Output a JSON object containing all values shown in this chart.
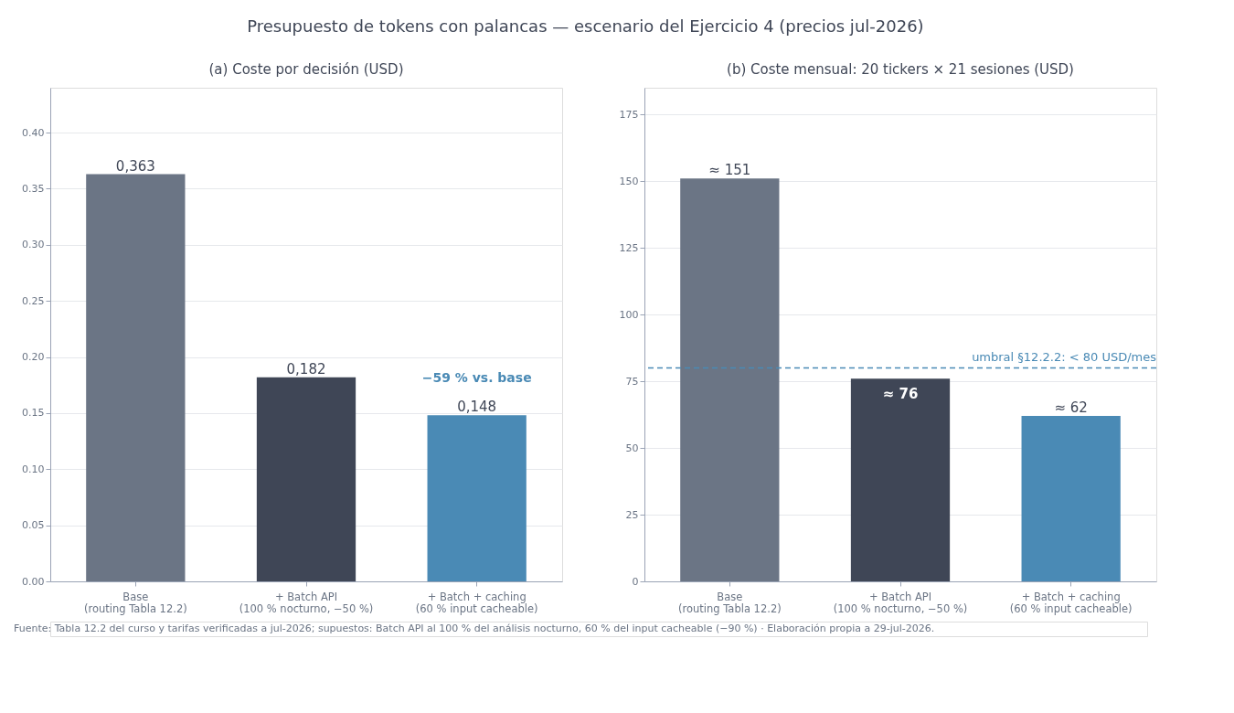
{
  "chart_data": [
    {
      "type": "bar",
      "title": "(a) Coste por decisión (USD)",
      "categories": [
        "Base\n(routing Tabla 12.2)",
        "+ Batch API\n(100 % nocturno, −50 %)",
        "+ Batch + caching\n(60 % input cacheable)"
      ],
      "values": [
        0.363,
        0.182,
        0.148
      ],
      "colors": [
        "#6b7585",
        "#3f4656",
        "#4a8ab5"
      ],
      "value_labels": [
        "0,363",
        "0,182",
        "0,148"
      ],
      "ylim": [
        0,
        0.44
      ],
      "yticks": [
        {
          "value": 0,
          "label": "0.00"
        },
        {
          "value": 0.05,
          "label": "0.05"
        },
        {
          "value": 0.1,
          "label": "0.10"
        },
        {
          "value": 0.15,
          "label": "0.15"
        },
        {
          "value": 0.2,
          "label": "0.20"
        },
        {
          "value": 0.25,
          "label": "0.25"
        },
        {
          "value": 0.3,
          "label": "0.30"
        },
        {
          "value": 0.35,
          "label": "0.35"
        },
        {
          "value": 0.4,
          "label": "0.40"
        }
      ],
      "grid": "y",
      "annotations": [
        "Presupuesto de tokens con palancas — escenario del Ejercicio 4 (precios jul-2026)",
        "Fuente: Tabla 12.2 del curso y tarifas verificadas a jul-2026; supuestos: Batch API al 100 % del análisis nocturno, 60 % del input cacheable (−90 %) · Elaboración propia a 29-jul-2026.",
        "−59 % vs. base"
      ]
    },
    {
      "type": "bar",
      "title": "(b) Coste mensual: 20 tickers × 21 sesiones (USD)",
      "categories": [
        "Base\n(routing Tabla 12.2)",
        "+ Batch API\n(100 % nocturno, −50 %)",
        "+ Batch + caching\n(60 % input cacheable)"
      ],
      "values": [
        151,
        76,
        62
      ],
      "colors": [
        "#6b7585",
        "#3f4656",
        "#4a8ab5"
      ],
      "value_labels": [
        "≈ 151",
        "≈ 76",
        "≈ 62"
      ],
      "ylim": [
        0,
        185
      ],
      "yticks": [
        0,
        25,
        50,
        75,
        100,
        125,
        150,
        175
      ],
      "grid": "y",
      "ref_lines": [
        {
          "axis": "y",
          "value": 80,
          "label": "umbral §12.2.2: < 80 USD/mes",
          "color": "#4a8ab5",
          "line_style": "dashed"
        }
      ]
    }
  ]
}
